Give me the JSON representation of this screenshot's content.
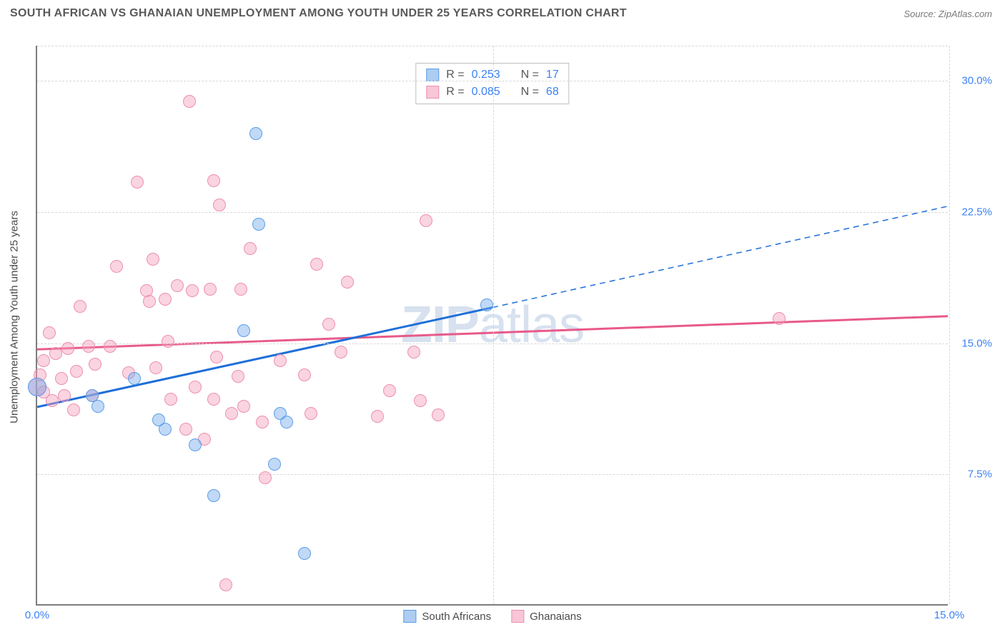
{
  "header": {
    "title": "SOUTH AFRICAN VS GHANAIAN UNEMPLOYMENT AMONG YOUTH UNDER 25 YEARS CORRELATION CHART",
    "source": "Source: ZipAtlas.com"
  },
  "watermark": {
    "bold": "ZIP",
    "rest": "atlas"
  },
  "chart": {
    "type": "scatter",
    "background_color": "#ffffff",
    "grid_color": "#d8d8d8",
    "axis_color": "#7d7d7d",
    "label_color": "#4a4a4a",
    "tick_color": "#3b82f6",
    "yaxis_label": "Unemployment Among Youth under 25 years",
    "xlim": [
      0,
      15
    ],
    "ylim": [
      0,
      32
    ],
    "xtick_labels": [
      {
        "v": 0.0,
        "label": "0.0%"
      },
      {
        "v": 15.0,
        "label": "15.0%"
      }
    ],
    "ytick_labels": [
      {
        "v": 7.5,
        "label": "7.5%"
      },
      {
        "v": 15.0,
        "label": "15.0%"
      },
      {
        "v": 22.5,
        "label": "22.5%"
      },
      {
        "v": 30.0,
        "label": "30.0%"
      }
    ],
    "gridlines_y": [
      7.5,
      15.0,
      22.5,
      30.0,
      32.0
    ],
    "gridlines_x": [
      7.5,
      15.0
    ],
    "marker_size": 18,
    "marker_size_big": 26,
    "legend_top": {
      "rows": [
        {
          "series": "sa",
          "r_label": "R =",
          "r": "0.253",
          "n_label": "N =",
          "n": "17"
        },
        {
          "series": "gh",
          "r_label": "R =",
          "r": "0.085",
          "n_label": "N =",
          "n": "68"
        }
      ]
    },
    "legend_bottom": [
      {
        "series": "sa",
        "label": "South Africans"
      },
      {
        "series": "gh",
        "label": "Ghanaians"
      }
    ],
    "series": {
      "sa": {
        "name": "South Africans",
        "color_fill": "rgba(118,170,234,0.45)",
        "color_stroke": "#5a9de8",
        "trend_color": "#1e6fd9",
        "trend": {
          "x1": 0,
          "y1": 11.3,
          "x2": 7.5,
          "y2": 17.0,
          "x2_ext": 15.0,
          "y2_ext": 22.8
        },
        "points": [
          {
            "x": 0.0,
            "y": 12.5,
            "big": true
          },
          {
            "x": 0.9,
            "y": 12.0
          },
          {
            "x": 1.0,
            "y": 11.4
          },
          {
            "x": 1.6,
            "y": 13.0
          },
          {
            "x": 2.1,
            "y": 10.1
          },
          {
            "x": 2.0,
            "y": 10.6
          },
          {
            "x": 2.6,
            "y": 9.2
          },
          {
            "x": 2.9,
            "y": 6.3
          },
          {
            "x": 3.4,
            "y": 15.7
          },
          {
            "x": 3.6,
            "y": 27.0
          },
          {
            "x": 3.65,
            "y": 21.8
          },
          {
            "x": 3.9,
            "y": 8.1
          },
          {
            "x": 4.0,
            "y": 11.0
          },
          {
            "x": 4.4,
            "y": 3.0
          },
          {
            "x": 4.1,
            "y": 10.5
          },
          {
            "x": 7.4,
            "y": 17.2
          }
        ]
      },
      "gh": {
        "name": "Ghanaians",
        "color_fill": "rgba(244,160,186,0.45)",
        "color_stroke": "#ec8fb0",
        "trend_color": "#e85a8a",
        "trend": {
          "x1": 0,
          "y1": 14.6,
          "x2": 15,
          "y2": 16.5
        },
        "points": [
          {
            "x": 0.0,
            "y": 12.5,
            "big": true
          },
          {
            "x": 0.05,
            "y": 13.2
          },
          {
            "x": 0.1,
            "y": 12.2
          },
          {
            "x": 0.1,
            "y": 14.0
          },
          {
            "x": 0.2,
            "y": 15.6
          },
          {
            "x": 0.25,
            "y": 11.7
          },
          {
            "x": 0.3,
            "y": 14.4
          },
          {
            "x": 0.4,
            "y": 13.0
          },
          {
            "x": 0.45,
            "y": 12.0
          },
          {
            "x": 0.5,
            "y": 14.7
          },
          {
            "x": 0.6,
            "y": 11.2
          },
          {
            "x": 0.65,
            "y": 13.4
          },
          {
            "x": 0.7,
            "y": 17.1
          },
          {
            "x": 0.85,
            "y": 14.8
          },
          {
            "x": 0.9,
            "y": 12.0
          },
          {
            "x": 0.95,
            "y": 13.8
          },
          {
            "x": 1.2,
            "y": 14.8
          },
          {
            "x": 1.3,
            "y": 19.4
          },
          {
            "x": 1.5,
            "y": 13.3
          },
          {
            "x": 1.65,
            "y": 24.2
          },
          {
            "x": 1.8,
            "y": 18.0
          },
          {
            "x": 1.85,
            "y": 17.4
          },
          {
            "x": 1.9,
            "y": 19.8
          },
          {
            "x": 1.95,
            "y": 13.6
          },
          {
            "x": 2.1,
            "y": 17.5
          },
          {
            "x": 2.15,
            "y": 15.1
          },
          {
            "x": 2.2,
            "y": 11.8
          },
          {
            "x": 2.3,
            "y": 18.3
          },
          {
            "x": 2.45,
            "y": 10.1
          },
          {
            "x": 2.5,
            "y": 28.8
          },
          {
            "x": 2.55,
            "y": 18.0
          },
          {
            "x": 2.6,
            "y": 12.5
          },
          {
            "x": 2.75,
            "y": 9.5
          },
          {
            "x": 2.85,
            "y": 18.1
          },
          {
            "x": 2.9,
            "y": 24.3
          },
          {
            "x": 2.9,
            "y": 11.8
          },
          {
            "x": 2.95,
            "y": 14.2
          },
          {
            "x": 3.0,
            "y": 22.9
          },
          {
            "x": 3.1,
            "y": 1.2
          },
          {
            "x": 3.2,
            "y": 11.0
          },
          {
            "x": 3.3,
            "y": 13.1
          },
          {
            "x": 3.35,
            "y": 18.1
          },
          {
            "x": 3.4,
            "y": 11.4
          },
          {
            "x": 3.5,
            "y": 20.4
          },
          {
            "x": 3.7,
            "y": 10.5
          },
          {
            "x": 3.75,
            "y": 7.3
          },
          {
            "x": 4.0,
            "y": 14.0
          },
          {
            "x": 4.4,
            "y": 13.2
          },
          {
            "x": 4.5,
            "y": 11.0
          },
          {
            "x": 4.6,
            "y": 19.5
          },
          {
            "x": 4.8,
            "y": 16.1
          },
          {
            "x": 5.0,
            "y": 14.5
          },
          {
            "x": 5.1,
            "y": 18.5
          },
          {
            "x": 5.6,
            "y": 10.8
          },
          {
            "x": 5.8,
            "y": 12.3
          },
          {
            "x": 6.2,
            "y": 14.5
          },
          {
            "x": 6.3,
            "y": 11.7
          },
          {
            "x": 6.4,
            "y": 22.0
          },
          {
            "x": 6.6,
            "y": 10.9
          },
          {
            "x": 12.2,
            "y": 16.4
          }
        ]
      }
    }
  }
}
